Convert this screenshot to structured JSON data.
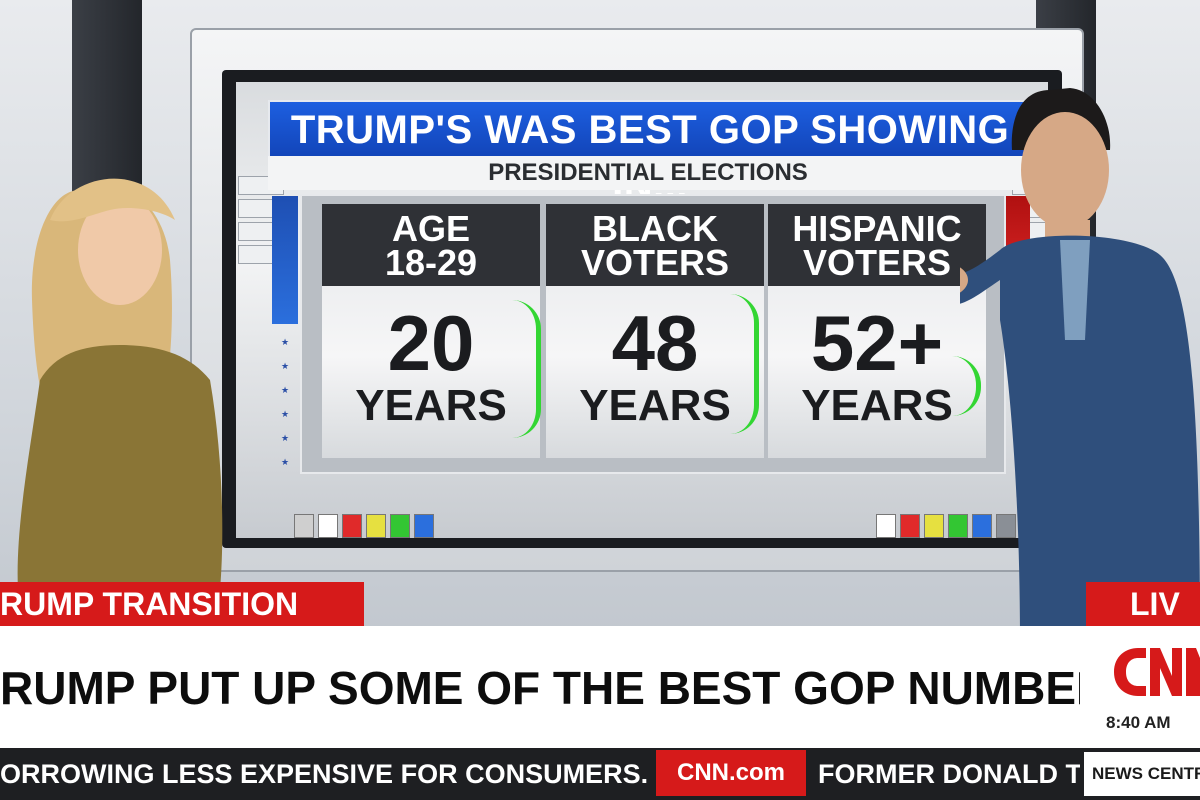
{
  "screen": {
    "title": "TRUMP'S WAS BEST GOP SHOWING IN...",
    "subtitle": "PRESIDENTIAL ELECTIONS",
    "columns": [
      {
        "header_line1": "AGE",
        "header_line2": "18-29",
        "number": "20",
        "unit": "YEARS"
      },
      {
        "header_line1": "BLACK",
        "header_line2": "VOTERS",
        "number": "48",
        "unit": "YEARS"
      },
      {
        "header_line1": "HISPANIC",
        "header_line2": "VOTERS",
        "number": "52+",
        "unit": "YEARS"
      }
    ],
    "colors": {
      "title_blue": "#1d5fe0",
      "header_dark": "#2f3136",
      "party_blue": "#2b6fdd",
      "party_red": "#e02a2a",
      "annotation_green": "#33d633"
    }
  },
  "lower_third": {
    "section_tag": "RUMP TRANSITION",
    "live_label": "LIV",
    "headline": "RUMP PUT UP SOME OF THE BEST GOP NUMBERS IN DECADES",
    "time": "8:40 AM",
    "brand_color": "#d61a1a"
  },
  "ticker": {
    "left_text": "ORROWING LESS EXPENSIVE FOR CONSUMERS.",
    "brand_site": "CNN.com",
    "right_text": "FORMER DONALD T",
    "corner_label": "NEWS CENTRAL"
  }
}
